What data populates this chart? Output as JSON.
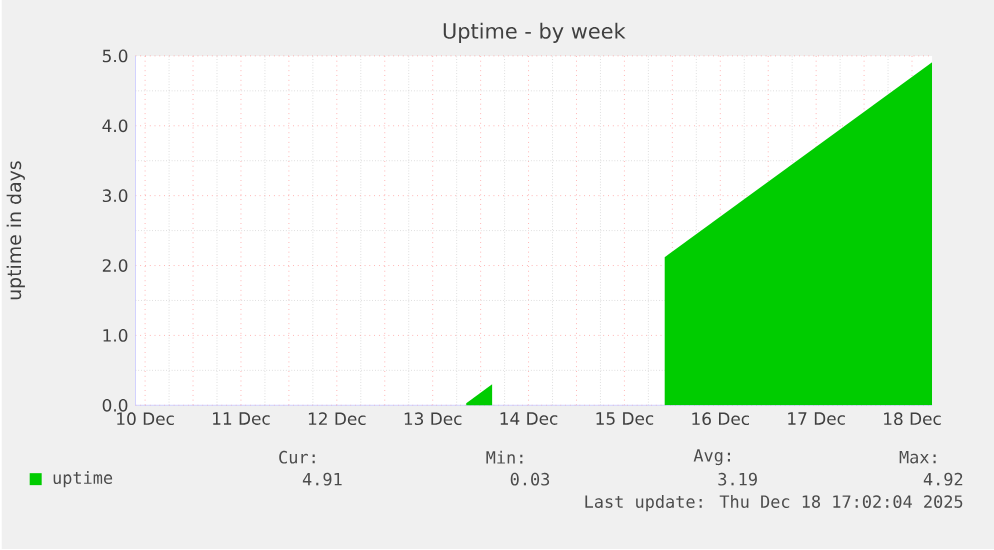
{
  "chart_data": {
    "type": "area",
    "title": "Uptime - by week",
    "ylabel": "uptime in days",
    "series": [
      {
        "name": "uptime",
        "color": "#00cc00",
        "x": [
          "2025-12-13T20:24",
          "2025-12-14T02:53",
          "2025-12-15T00:00",
          "2025-12-15T22:05",
          "2025-12-18T17:02"
        ],
        "values": [
          0.03,
          0.3,
          null,
          2.12,
          4.91
        ]
      }
    ],
    "xlim": [
      "2025-12-10T09:36",
      "2025-12-18T17:02"
    ],
    "ylim": [
      0,
      5
    ],
    "xticks": [
      {
        "value": "2025-12-10T12:00",
        "label": "10 Dec"
      },
      {
        "value": "2025-12-11",
        "label": null
      },
      {
        "value": "2025-12-11T12:00",
        "label": "11 Dec"
      },
      {
        "value": "2025-12-12",
        "label": null
      },
      {
        "value": "2025-12-12T12:00",
        "label": "12 Dec"
      },
      {
        "value": "2025-12-13",
        "label": null
      },
      {
        "value": "2025-12-13T12:00",
        "label": "13 Dec"
      },
      {
        "value": "2025-12-14",
        "label": null
      },
      {
        "value": "2025-12-14T12:00",
        "label": "14 Dec"
      },
      {
        "value": "2025-12-15",
        "label": null
      },
      {
        "value": "2025-12-15T12:00",
        "label": "15 Dec"
      },
      {
        "value": "2025-12-16",
        "label": null
      },
      {
        "value": "2025-12-16T12:00",
        "label": "16 Dec"
      },
      {
        "value": "2025-12-17",
        "label": null
      },
      {
        "value": "2025-12-17T12:00",
        "label": "17 Dec"
      },
      {
        "value": "2025-12-18",
        "label": null
      },
      {
        "value": "2025-12-18T12:00",
        "label": "18 Dec"
      }
    ],
    "yticks": [
      {
        "value": 0,
        "label": "0.0"
      },
      {
        "value": 1,
        "label": "1.0"
      },
      {
        "value": 2,
        "label": "2.0"
      },
      {
        "value": 3,
        "label": "3.0"
      },
      {
        "value": 4,
        "label": "4.0"
      },
      {
        "value": 5,
        "label": "5.0"
      }
    ],
    "grid": true,
    "legend": "bottom left",
    "annotations": [
      "Cur:",
      "Min:",
      "Avg:",
      "Max:",
      "4.91",
      "0.03",
      "3.19",
      "4.92",
      "Last update: Thu Dec 18 17:02:04 2025"
    ]
  }
}
